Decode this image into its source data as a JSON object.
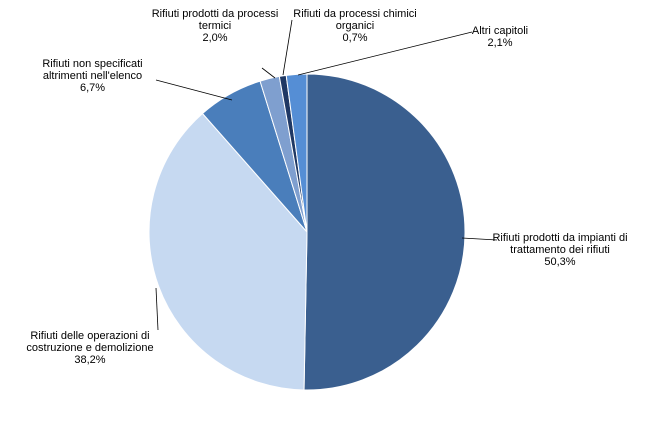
{
  "chart_data": {
    "type": "pie",
    "categories": [
      "Rifiuti prodotti da impianti di trattamento dei rifiuti",
      "Rifiuti delle operazioni di costruzione e demolizione",
      "Rifiuti non specificati altrimenti nell'elenco",
      "Rifiuti prodotti da processi termici",
      "Rifiuti da processi chimici organici",
      "Altri capitoli"
    ],
    "values": [
      50.3,
      38.2,
      6.7,
      2.0,
      0.7,
      2.1
    ],
    "value_labels": [
      "50,3%",
      "38,2%",
      "6,7%",
      "2,0%",
      "0,7%",
      "2,1%"
    ],
    "colors": [
      "#3a5f8f",
      "#c6d9f1",
      "#4a7ebb",
      "#7f9fcf",
      "#1f3864",
      "#558ed5"
    ]
  }
}
